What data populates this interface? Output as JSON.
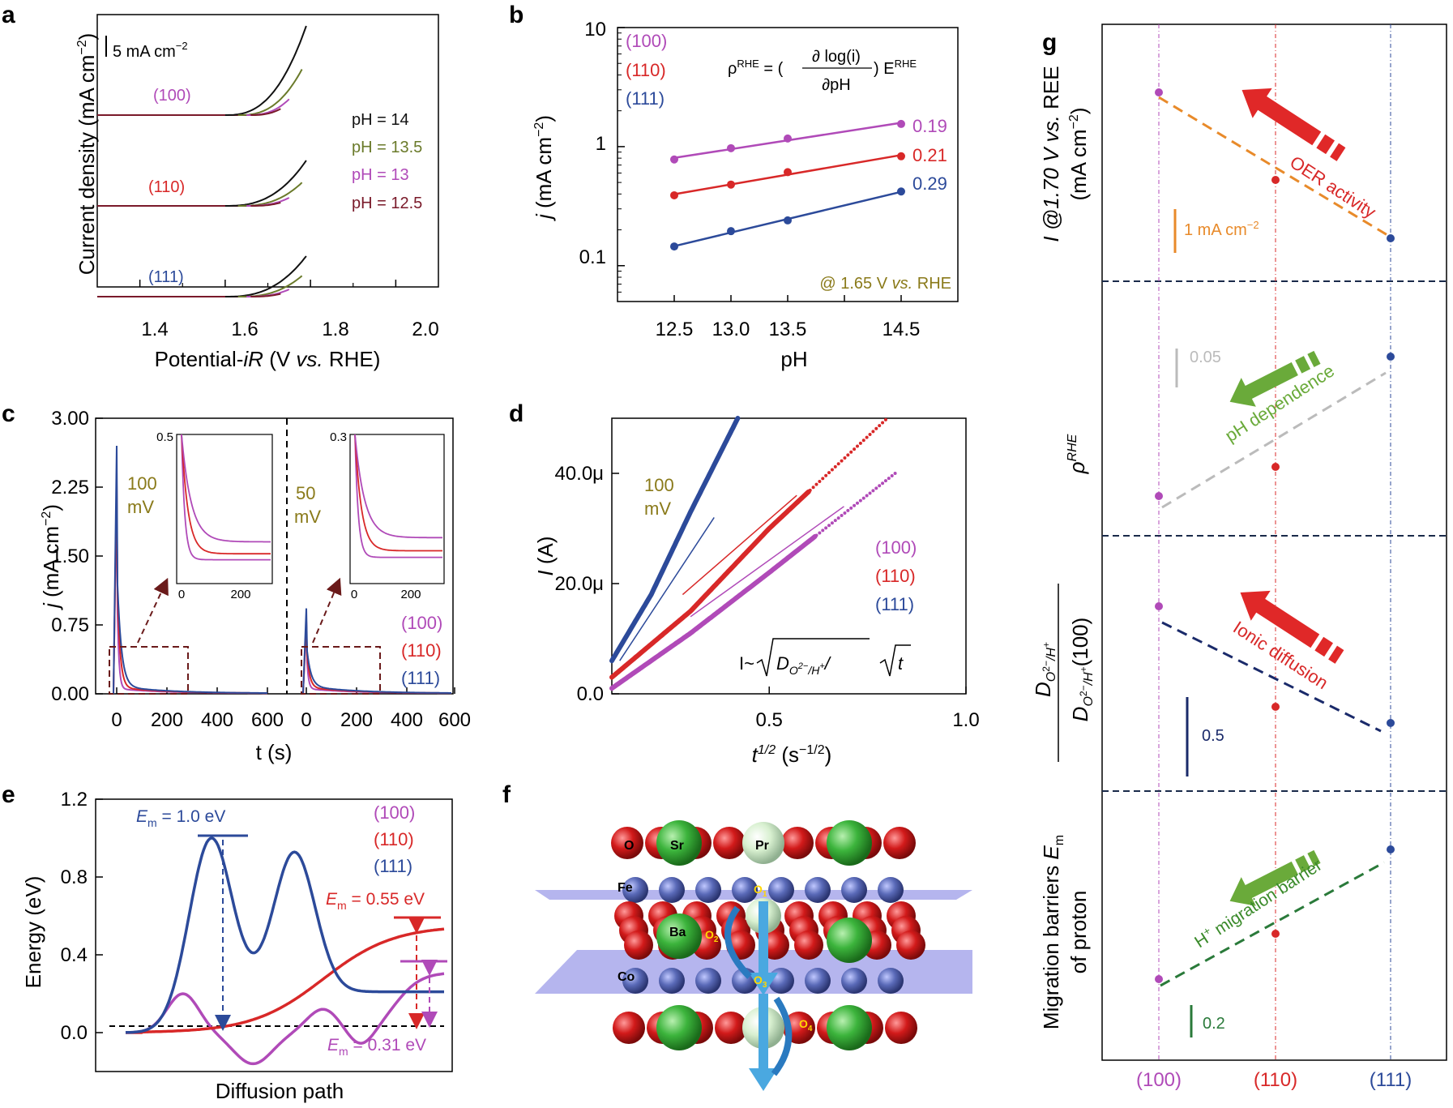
{
  "colors": {
    "p100": "#b04ab8",
    "p110": "#d82828",
    "p111": "#2c4a9a",
    "ph14": "#111111",
    "ph135": "#6a7a2a",
    "ph13": "#b04ab8",
    "ph125": "#7a1a2a",
    "olive": "#8a7a1a",
    "orange": "#e88a2a",
    "green": "#2a7a3a",
    "lightgreen": "#6aaa3a",
    "navy": "#1a2a6a",
    "gray": "#bbbbbb",
    "red_arrow": "#e02828",
    "green_arrow": "#6aaa3a"
  },
  "chart_data": [
    {
      "panel": "a",
      "type": "line",
      "xlabel": "Potential-iR (V vs. RHE)",
      "ylabel": "Current density (mA cm−2)",
      "xlim": [
        1.3,
        2.1
      ],
      "xticks": [
        "1.4",
        "1.6",
        "1.8",
        "2.0"
      ],
      "scale_bar": "5 mA cm−2",
      "groups": [
        "(100)",
        "(110)",
        "(111)"
      ],
      "series": [
        {
          "name": "pH = 14",
          "onset": 1.6,
          "end": 1.79
        },
        {
          "name": "pH = 13.5",
          "onset": 1.63,
          "end": 1.78
        },
        {
          "name": "pH = 13",
          "onset": 1.65,
          "end": 1.75
        },
        {
          "name": "pH = 12.5",
          "onset": 1.66,
          "end": 1.73
        }
      ]
    },
    {
      "panel": "b",
      "type": "scatter",
      "xlabel": "pH",
      "ylabel": "j (mA cm−2)",
      "yscale": "log",
      "xlim": [
        12.0,
        15.0
      ],
      "ylim": [
        0.05,
        10
      ],
      "xticks": [
        "12.5",
        "13.0",
        "13.5",
        "14.5"
      ],
      "yticks": [
        "0.1",
        "1",
        "10"
      ],
      "equation": "ρRHE = (∂log(i)/∂pH) ERHE",
      "annotation": "@ 1.65 V vs. RHE",
      "x": [
        12.5,
        13.0,
        13.5,
        14.5
      ],
      "series": [
        {
          "name": "(100)",
          "values": [
            0.78,
            0.97,
            1.17,
            1.55
          ],
          "slope_label": "0.19"
        },
        {
          "name": "(110)",
          "values": [
            0.39,
            0.48,
            0.61,
            0.83
          ],
          "slope_label": "0.21"
        },
        {
          "name": "(111)",
          "values": [
            0.145,
            0.195,
            0.24,
            0.42
          ],
          "slope_label": "0.29"
        }
      ]
    },
    {
      "panel": "c",
      "type": "line",
      "xlabel": "t (s)",
      "ylabel": "j (mA cm−2)",
      "ylim": [
        0,
        3.0
      ],
      "yticks": [
        "0.00",
        "0.75",
        "1.50",
        "2.25",
        "3.00"
      ],
      "xticks": [
        "0",
        "200",
        "400",
        "600"
      ],
      "steps": [
        "100 mV",
        "50 mV"
      ],
      "insets": [
        {
          "ymax": "0.5",
          "xtick": [
            "0",
            "200"
          ]
        },
        {
          "ymax": "0.3",
          "xtick": [
            "0",
            "200"
          ]
        }
      ],
      "peaks": [
        {
          "step": "100 mV",
          "peak": 2.7
        },
        {
          "step": "50 mV",
          "peak": 0.93
        }
      ],
      "series": [
        "(100)",
        "(110)",
        "(111)"
      ]
    },
    {
      "panel": "d",
      "type": "line",
      "xlabel": "t1/2 (s−1/2)",
      "ylabel": "I (A)",
      "xlim": [
        0.1,
        1.0
      ],
      "ylim": [
        0,
        50
      ],
      "xticks": [
        "0.5",
        "1.0"
      ],
      "yticks": [
        "0.0",
        "20.0μ",
        "40.0μ"
      ],
      "annotation": "100 mV",
      "equation": "I~√(DO2−/H+) √t",
      "series": [
        {
          "name": "(111)",
          "x": [
            0.1,
            0.2,
            0.3,
            0.42
          ],
          "values": [
            6,
            18,
            33,
            50
          ]
        },
        {
          "name": "(110)",
          "x": [
            0.1,
            0.3,
            0.5,
            0.8
          ],
          "values": [
            3,
            15,
            30,
            50
          ]
        },
        {
          "name": "(100)",
          "x": [
            0.1,
            0.3,
            0.5,
            0.82
          ],
          "values": [
            1,
            11,
            22,
            40
          ]
        }
      ]
    },
    {
      "panel": "e",
      "type": "line",
      "xlabel": "Diffusion path",
      "ylabel": "Energy (eV)",
      "ylim": [
        -0.2,
        1.2
      ],
      "yticks": [
        "0.0",
        "0.4",
        "0.8",
        "1.2"
      ],
      "series": [
        {
          "name": "(100)",
          "barrier": "Em = 0.31 eV"
        },
        {
          "name": "(110)",
          "barrier": "Em = 0.55 eV"
        },
        {
          "name": "(111)",
          "barrier": "Em = 1.0 eV"
        }
      ]
    },
    {
      "panel": "g",
      "type": "scatter",
      "categories": [
        "(100)",
        "(110)",
        "(111)"
      ],
      "rows": [
        {
          "ylabel": "I @1.70 V vs. REE (mA cm−2)",
          "trend": "OER activity",
          "scale": "1 mA cm−2"
        },
        {
          "ylabel": "ρRHE",
          "trend": "pH dependence",
          "scale": "0.05"
        },
        {
          "ylabel": "DO2−/H+ / DO2−/H+(100)",
          "trend": "Ionic diffusion",
          "scale": "0.5"
        },
        {
          "ylabel": "Migration barriers Em of proton",
          "trend": "H+ migration barrier",
          "scale": "0.2"
        }
      ]
    }
  ],
  "panel_labels": [
    "a",
    "b",
    "c",
    "d",
    "e",
    "f",
    "g"
  ],
  "panel_a": {
    "scale_text": "5 mA cm",
    "scale_sup": "−2",
    "legend": [
      "pH = 14",
      "pH = 13.5",
      "pH = 13",
      "pH = 12.5"
    ],
    "groups": [
      "(100)",
      "(110)",
      "(111)"
    ],
    "xticks": [
      "1.4",
      "1.6",
      "1.8",
      "2.0"
    ],
    "xlabel_pre": "Potential-",
    "xlabel_it": "iR",
    "xlabel_mid": " (V ",
    "xlabel_vs": "vs.",
    "xlabel_post": " RHE)",
    "ylabel": "Current density (mA cm",
    "ylabel_sup": "−2",
    "ylabel_end": ")"
  },
  "panel_b": {
    "xticks": [
      "12.5",
      "13.0",
      "13.5",
      "14.5"
    ],
    "yticks": [
      "0.1",
      "1",
      "10"
    ],
    "legend": [
      "(100)",
      "(110)",
      "(111)"
    ],
    "slopes": [
      "0.19",
      "0.21",
      "0.29"
    ],
    "eq_rho": "ρ",
    "eq_rho_sup": "RHE",
    "eq_eq": " = (",
    "eq_num": "∂ log(i)",
    "eq_den": "∂pH",
    "eq_close": ") E",
    "eq_E_sup": "RHE",
    "note_pre": "@ 1.65 V ",
    "note_vs": "vs.",
    "note_post": " RHE",
    "xlabel": "pH",
    "ylabel_j": "j",
    "ylabel": " (mA cm",
    "ylabel_sup": "−2",
    "ylabel_end": ")"
  },
  "panel_c": {
    "yticks": [
      "0.00",
      "0.75",
      "1.50",
      "2.25",
      "3.00"
    ],
    "xticks_left": [
      "0",
      "200",
      "400",
      "600"
    ],
    "xticks_right": [
      "0",
      "200",
      "400",
      "600"
    ],
    "step1_a": "100",
    "step1_b": "mV",
    "step2_a": "50",
    "step2_b": "mV",
    "inset1_ymax": "0.5",
    "inset2_ymax": "0.3",
    "inset_x0": "0",
    "inset_x200": "200",
    "legend": [
      "(100)",
      "(110)",
      "(111)"
    ],
    "xlabel": "t (s)",
    "ylabel_j": "j",
    "ylabel": " (mA cm",
    "ylabel_sup": "−2",
    "ylabel_end": ")"
  },
  "panel_d": {
    "yticks": [
      "0.0",
      "20.0μ",
      "40.0μ"
    ],
    "xticks": [
      "0.5",
      "1.0"
    ],
    "step_a": "100",
    "step_b": "mV",
    "legend": [
      "(100)",
      "(110)",
      "(111)"
    ],
    "eq_I": "I~",
    "eq_D": "D",
    "eq_D_sub": "O",
    "eq_D_sub_sup": "2−",
    "eq_D_sub_rest": "/H",
    "eq_D_sub_plus": "+",
    "eq_slash": "/",
    "eq_t": "t",
    "xlabel_t": "t",
    "xlabel_sup": "1/2",
    "xlabel_rest": " (s",
    "xlabel_rest_sup": "−1/2",
    "xlabel_close": ")",
    "ylabel_I": "I",
    "ylabel": " (A)"
  },
  "panel_e": {
    "yticks": [
      "0.0",
      "0.4",
      "0.8",
      "1.2"
    ],
    "legend": [
      "(100)",
      "(110)",
      "(111)"
    ],
    "em_E": "E",
    "em_sub": "m",
    "em1": " = 1.0 eV",
    "em2": " = 0.55 eV",
    "em3": " = 0.31 eV",
    "xlabel": "Diffusion path",
    "ylabel": "Energy (eV)"
  },
  "panel_f": {
    "atoms": [
      "O",
      "Sr",
      "Pr",
      "Fe",
      "Ba",
      "Co"
    ],
    "sites": [
      "O",
      "1",
      "O",
      "2",
      "O",
      "3",
      "O",
      "4"
    ]
  },
  "panel_g": {
    "categories": [
      "(100)",
      "(110)",
      "(111)"
    ],
    "row1_label_a": "I @1.70 V ",
    "row1_label_vs": "vs.",
    "row1_label_b": " REE",
    "row1_label_c": "(mA cm",
    "row1_label_sup": "−2",
    "row1_label_end": ")",
    "row2_label": "ρ",
    "row2_label_sup": "RHE",
    "row3_num": "D",
    "row3_sub": "O",
    "row3_subsup": "2−",
    "row3_subrest": "/H",
    "row3_plus": "+",
    "row3_den_end": "(100)",
    "row4_label_a": "Migration barriers ",
    "row4_label_E": "E",
    "row4_label_m": "m",
    "row4_label_b": "of proton",
    "trend1": "OER activity",
    "trend2": "pH dependence",
    "trend3": "Ionic diffusion",
    "trend4_H": "H",
    "trend4_sup": "+",
    "trend4": " migration barrier",
    "scale1_a": "1 mA cm",
    "scale1_sup": "−2",
    "scale2": "0.05",
    "scale3": "0.5",
    "scale4": "0.2"
  }
}
